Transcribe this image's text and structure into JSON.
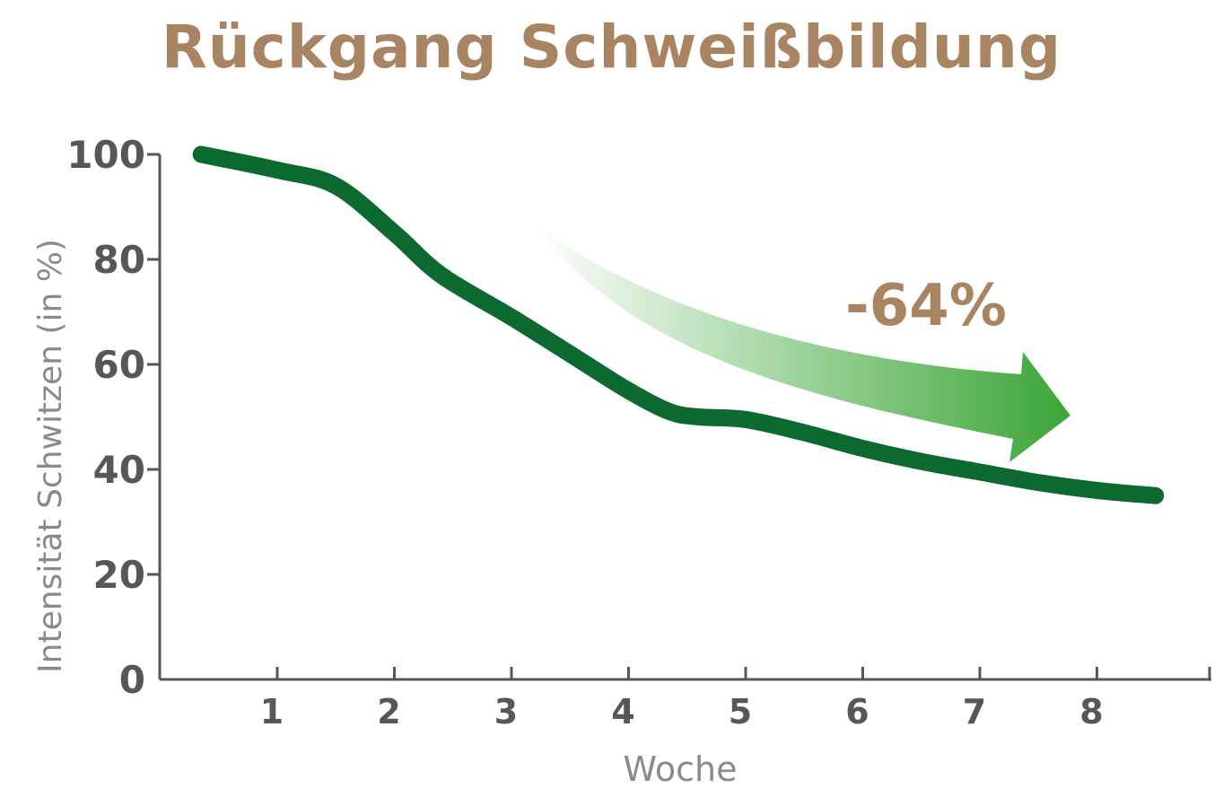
{
  "chart_data": {
    "type": "line",
    "title": "Rückgang Schweißbildung",
    "xlabel": "Woche",
    "ylabel": "Intensität Schwitzen (in %)",
    "x_ticks": [
      "1",
      "2",
      "3",
      "4",
      "5",
      "6",
      "7",
      "8"
    ],
    "y_ticks": [
      "0",
      "20",
      "40",
      "60",
      "80",
      "100"
    ],
    "xlim": [
      0,
      9.0
    ],
    "ylim": [
      0,
      100
    ],
    "grid": false,
    "series": [
      {
        "x": [
          0.35,
          1.0,
          1.5,
          2.0,
          2.4,
          3.0,
          3.5,
          4.0,
          4.35,
          4.6,
          5.0,
          5.5,
          6.0,
          6.5,
          7.0,
          7.5,
          8.0,
          8.5
        ],
        "values": [
          100,
          97,
          94,
          85,
          77,
          69,
          62,
          55,
          51,
          50,
          49.5,
          47,
          44,
          41.5,
          39.5,
          37.5,
          36,
          35
        ]
      }
    ],
    "annotation": {
      "text": "-64%"
    },
    "colors": {
      "line": "#0c6a30",
      "title": "#a88462",
      "annotation": "#a88462",
      "arrow": "#3aa536",
      "axis": "#575757",
      "tick_label": "#575757",
      "axis_title": "#8a8a8a"
    }
  }
}
